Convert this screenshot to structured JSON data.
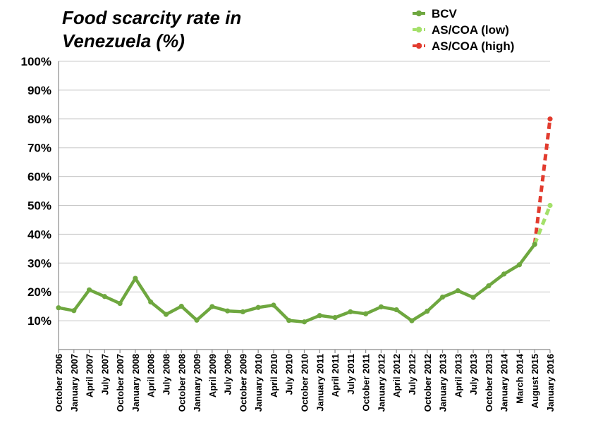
{
  "chart_data": {
    "type": "line",
    "title_lines": [
      "Food scarcity rate in",
      "Venezuela (%)"
    ],
    "xlabel": "",
    "ylabel": "",
    "ylim": [
      0,
      100
    ],
    "y_ticks": [
      "10%",
      "20%",
      "30%",
      "40%",
      "50%",
      "60%",
      "70%",
      "80%",
      "90%",
      "100%"
    ],
    "grid": true,
    "legend_position": "top-right",
    "categories": [
      "October 2006",
      "January 2007",
      "April 2007",
      "July 2007",
      "October 2007",
      "January 2008",
      "April 2008",
      "July 2008",
      "October 2008",
      "January 2009",
      "April 2009",
      "July 2009",
      "October 2009",
      "January 2010",
      "April 2010",
      "July 2010",
      "October 2010",
      "January 2011",
      "April 2011",
      "July 2011",
      "October 2011",
      "January 2012",
      "April 2012",
      "July 2012",
      "October 2012",
      "January 2013",
      "April 2013",
      "July 2013",
      "October 2013",
      "January 2014",
      "March 2014",
      "August 2015",
      "January 2016"
    ],
    "series": [
      {
        "name": "BCV",
        "color": "#6ea73f",
        "style": "solid",
        "values": [
          14.5,
          13.5,
          20.7,
          18.4,
          16.0,
          24.7,
          16.5,
          12.2,
          15.0,
          10.2,
          14.9,
          13.4,
          13.1,
          14.6,
          15.4,
          10.1,
          9.6,
          11.8,
          11.1,
          13.1,
          12.4,
          14.8,
          13.8,
          10.0,
          13.3,
          18.2,
          20.4,
          18.1,
          22.1,
          26.2,
          29.4,
          36.5,
          null
        ]
      },
      {
        "name": "AS/COA (low)",
        "color": "#a4e06a",
        "style": "dashed",
        "values": [
          null,
          null,
          null,
          null,
          null,
          null,
          null,
          null,
          null,
          null,
          null,
          null,
          null,
          null,
          null,
          null,
          null,
          null,
          null,
          null,
          null,
          null,
          null,
          null,
          null,
          null,
          null,
          null,
          null,
          null,
          null,
          36.5,
          50.0
        ]
      },
      {
        "name": "AS/COA (high)",
        "color": "#e23b2e",
        "style": "dashed",
        "values": [
          null,
          null,
          null,
          null,
          null,
          null,
          null,
          null,
          null,
          null,
          null,
          null,
          null,
          null,
          null,
          null,
          null,
          null,
          null,
          null,
          null,
          null,
          null,
          null,
          null,
          null,
          null,
          null,
          null,
          null,
          null,
          36.5,
          80.0
        ]
      }
    ]
  }
}
